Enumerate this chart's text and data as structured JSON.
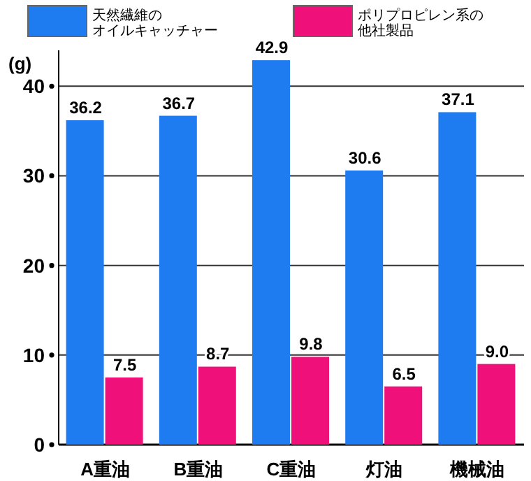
{
  "chart_data": {
    "type": "bar",
    "ylabel": "(g)",
    "categories": [
      "A重油",
      "B重油",
      "C重油",
      "灯油",
      "機械油"
    ],
    "series": [
      {
        "name": "天然繊維のオイルキャッチャー",
        "color": "#1e7cf0",
        "values": [
          36.2,
          36.7,
          42.9,
          30.6,
          37.1
        ],
        "value_labels": [
          "36.2",
          "36.7",
          "42.9",
          "30.6",
          "37.1"
        ]
      },
      {
        "name": "ポリプロピレン系の他社製品",
        "color": "#f0107a",
        "values": [
          7.5,
          8.7,
          9.8,
          6.5,
          9.0
        ],
        "value_labels": [
          "7.5",
          "8.7",
          "9.8",
          "6.5",
          "9.0"
        ]
      }
    ],
    "ylim": [
      0,
      44
    ],
    "yticks": [
      0,
      10,
      20,
      30,
      40
    ],
    "grid": "y",
    "legend": "top"
  }
}
